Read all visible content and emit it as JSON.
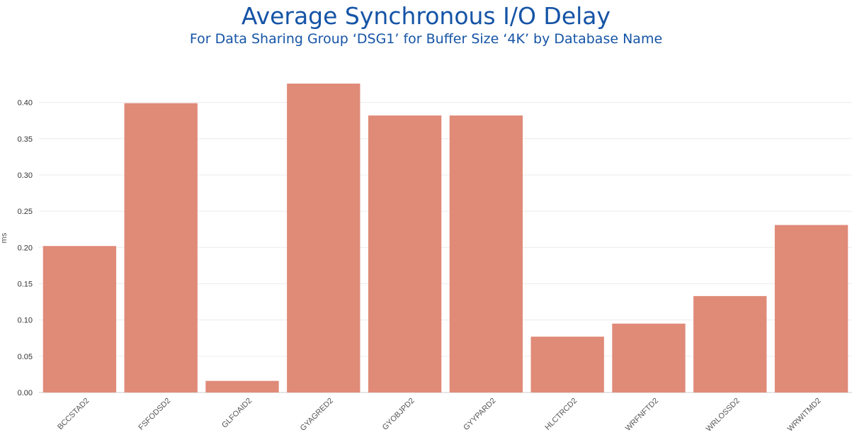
{
  "chart_data": {
    "type": "bar",
    "title": "Average Synchronous I/O Delay",
    "subtitle": "For Data Sharing Group ‘DSG1’ for Buffer Size ‘4K’ by Database Name",
    "xlabel": "",
    "ylabel": "ms",
    "categories": [
      "BCCSTAD2",
      "FSFODSD2",
      "GLFOAID2",
      "GYAGRED2",
      "GYOBJPD2",
      "GYYPARD2",
      "HLCTRCD2",
      "WRFNFTD2",
      "WRLOSSD2",
      "WRWITMD2"
    ],
    "values": [
      0.202,
      0.399,
      0.016,
      0.426,
      0.382,
      0.382,
      0.077,
      0.095,
      0.133,
      0.231
    ],
    "ylim": [
      0,
      0.426
    ],
    "yticks": [
      "0.00",
      "0.05",
      "0.10",
      "0.15",
      "0.20",
      "0.25",
      "0.30",
      "0.35",
      "0.40"
    ],
    "grid": true,
    "legend": "none",
    "bar_color": "#e08a78"
  }
}
